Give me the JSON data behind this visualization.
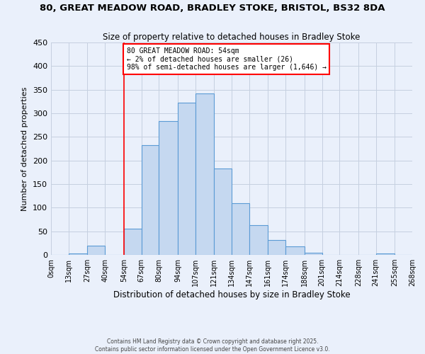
{
  "title1": "80, GREAT MEADOW ROAD, BRADLEY STOKE, BRISTOL, BS32 8DA",
  "title2": "Size of property relative to detached houses in Bradley Stoke",
  "xlabel": "Distribution of detached houses by size in Bradley Stoke",
  "ylabel": "Number of detached properties",
  "bar_color": "#c5d8f0",
  "bar_edge_color": "#5b9bd5",
  "background_color": "#eaf0fb",
  "bin_edges": [
    0,
    13,
    27,
    40,
    54,
    67,
    80,
    94,
    107,
    121,
    134,
    147,
    161,
    174,
    188,
    201,
    214,
    228,
    241,
    255,
    268
  ],
  "bin_labels": [
    "0sqm",
    "13sqm",
    "27sqm",
    "40sqm",
    "54sqm",
    "67sqm",
    "80sqm",
    "94sqm",
    "107sqm",
    "121sqm",
    "134sqm",
    "147sqm",
    "161sqm",
    "174sqm",
    "188sqm",
    "201sqm",
    "214sqm",
    "228sqm",
    "241sqm",
    "255sqm",
    "268sqm"
  ],
  "counts": [
    0,
    3,
    20,
    0,
    55,
    232,
    284,
    323,
    342,
    183,
    110,
    63,
    32,
    18,
    5,
    0,
    0,
    0,
    3,
    0
  ],
  "vline_x": 54,
  "annotation_text": "80 GREAT MEADOW ROAD: 54sqm\n← 2% of detached houses are smaller (26)\n98% of semi-detached houses are larger (1,646) →",
  "annotation_box_color": "white",
  "annotation_box_edge_color": "red",
  "ylim": [
    0,
    450
  ],
  "yticks": [
    0,
    50,
    100,
    150,
    200,
    250,
    300,
    350,
    400,
    450
  ],
  "footer1": "Contains HM Land Registry data © Crown copyright and database right 2025.",
  "footer2": "Contains public sector information licensed under the Open Government Licence v3.0.",
  "grid_color": "#c5d0e0"
}
